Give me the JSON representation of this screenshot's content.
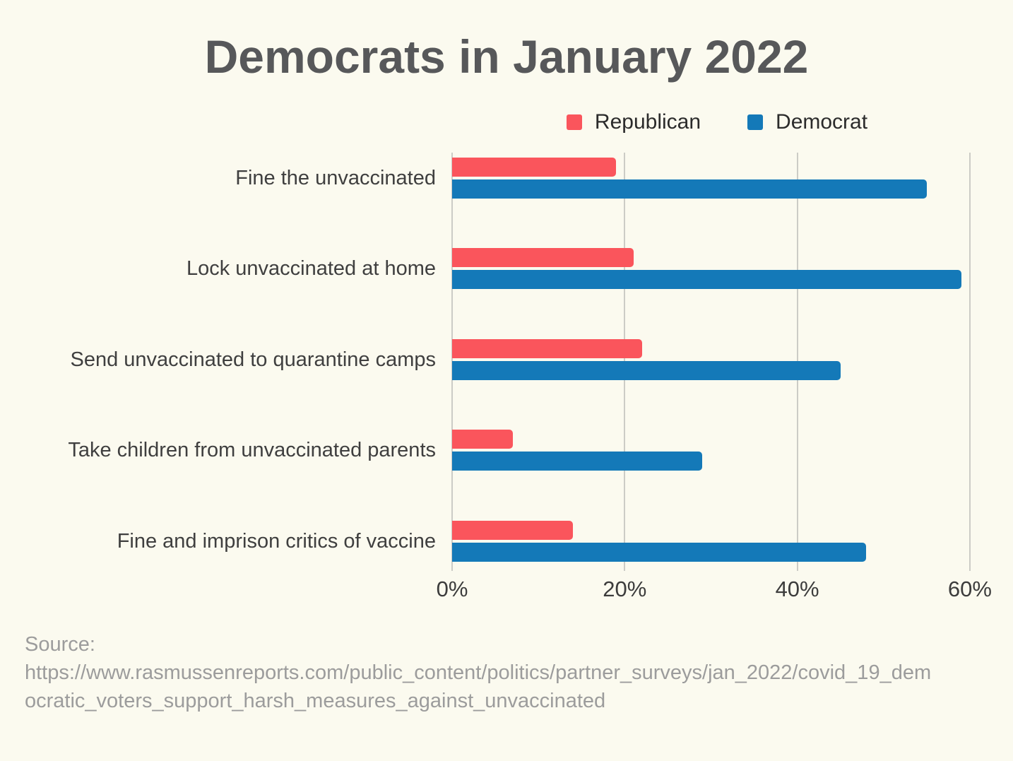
{
  "chart_data": {
    "type": "bar",
    "orientation": "horizontal",
    "title": "Democrats in January 2022",
    "categories": [
      "Fine the unvaccinated",
      "Lock unvaccinated at home",
      "Send unvaccinated to quarantine camps",
      "Take children from unvaccinated parents",
      "Fine and imprison critics of vaccine"
    ],
    "series": [
      {
        "name": "Republican",
        "color": "#fa555c",
        "values": [
          19,
          21,
          22,
          7,
          14
        ]
      },
      {
        "name": "Democrat",
        "color": "#1479b8",
        "values": [
          55,
          59,
          45,
          29,
          48
        ]
      }
    ],
    "x_ticks": [
      {
        "value": 0,
        "label": "0%"
      },
      {
        "value": 20,
        "label": "20%"
      },
      {
        "value": 40,
        "label": "40%"
      },
      {
        "value": 60,
        "label": "60%"
      }
    ],
    "xlim": [
      0,
      61.4
    ],
    "grid": "vertical-only",
    "legend_position": "top",
    "ylabel": "",
    "xlabel": ""
  },
  "source": {
    "label": "Source:",
    "lines": [
      "https://www.rasmussenreports.com/public_content/politics/partner_surveys/jan_2022/covid_19_dem",
      "ocratic_voters_support_harsh_measures_against_unvaccinated"
    ]
  },
  "colors": {
    "background": "#fbfaef",
    "grid": "#ccccc6",
    "title_text": "#57585a",
    "label_text": "#3f3f3f",
    "source_text": "#9c9c9c"
  }
}
